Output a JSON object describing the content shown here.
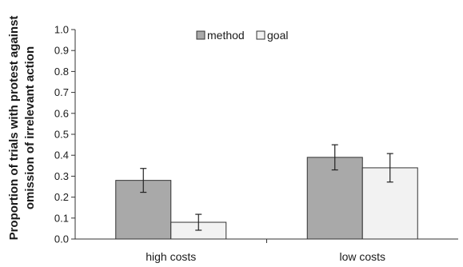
{
  "chart_data": {
    "type": "bar",
    "title": "",
    "xlabel": "",
    "ylabel_lines": [
      "Proportion of trials with protest against",
      "omission of irrelevant action"
    ],
    "categories": [
      "high costs",
      "low costs"
    ],
    "ylim": [
      0.0,
      1.0
    ],
    "yticks": [
      "0.0",
      "0.1",
      "0.2",
      "0.3",
      "0.4",
      "0.5",
      "0.6",
      "0.7",
      "0.8",
      "0.9",
      "1.0"
    ],
    "series": [
      {
        "name": "method",
        "values": [
          0.28,
          0.39
        ],
        "errors": [
          0.057,
          0.06
        ],
        "color": "#a9a9a9"
      },
      {
        "name": "goal",
        "values": [
          0.08,
          0.34
        ],
        "errors": [
          0.038,
          0.068
        ],
        "color": "#f2f2f2"
      }
    ],
    "legend": "top-center",
    "grid": false
  }
}
